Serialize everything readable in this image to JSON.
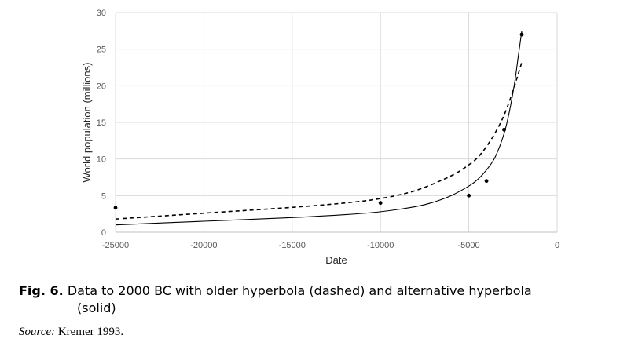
{
  "caption": {
    "label": "Fig. 6.",
    "line1": "Data to 2000 BC with older hyperbola (dashed) and alternative hyperbola",
    "line2": "(solid)"
  },
  "source": {
    "label": "Source:",
    "text": "Kremer 1993."
  },
  "chart_data": {
    "type": "scatter",
    "title": "",
    "xlabel": "Date",
    "ylabel": "World population (millions)",
    "xlim": [
      -25000,
      0
    ],
    "ylim": [
      0,
      30
    ],
    "xticks": [
      -25000,
      -20000,
      -15000,
      -10000,
      -5000,
      0
    ],
    "yticks": [
      0,
      5,
      10,
      15,
      20,
      25,
      30
    ],
    "grid": true,
    "legend": "none",
    "points": {
      "x": [
        -25000,
        -10000,
        -5000,
        -4000,
        -3000,
        -2000
      ],
      "y": [
        3.34,
        4,
        5,
        7,
        14,
        27
      ]
    },
    "series": [
      {
        "style": "dashed",
        "x": [
          -25000,
          -20000,
          -15000,
          -12000,
          -10000,
          -8000,
          -6000,
          -5000,
          -4500,
          -4000,
          -3500,
          -3000,
          -2500,
          -2000
        ],
        "y": [
          1.8,
          2.6,
          3.4,
          4.0,
          4.6,
          5.7,
          7.7,
          9.2,
          10.2,
          11.7,
          13.6,
          16.0,
          19.3,
          23.2
        ]
      },
      {
        "style": "solid",
        "x": [
          -25000,
          -20000,
          -15000,
          -12000,
          -10000,
          -8000,
          -7000,
          -6000,
          -5000,
          -4500,
          -4000,
          -3500,
          -3000,
          -2700,
          -2400,
          -2200,
          -2000
        ],
        "y": [
          1.0,
          1.5,
          2.0,
          2.4,
          2.8,
          3.5,
          4.1,
          5.0,
          6.3,
          7.2,
          8.5,
          10.3,
          13.5,
          16.5,
          20.5,
          24.0,
          27.5
        ]
      }
    ],
    "colors": {
      "line": "#000000",
      "marker": "#000000",
      "grid": "#d9d9d9",
      "axis": "#bfbfbf"
    }
  }
}
